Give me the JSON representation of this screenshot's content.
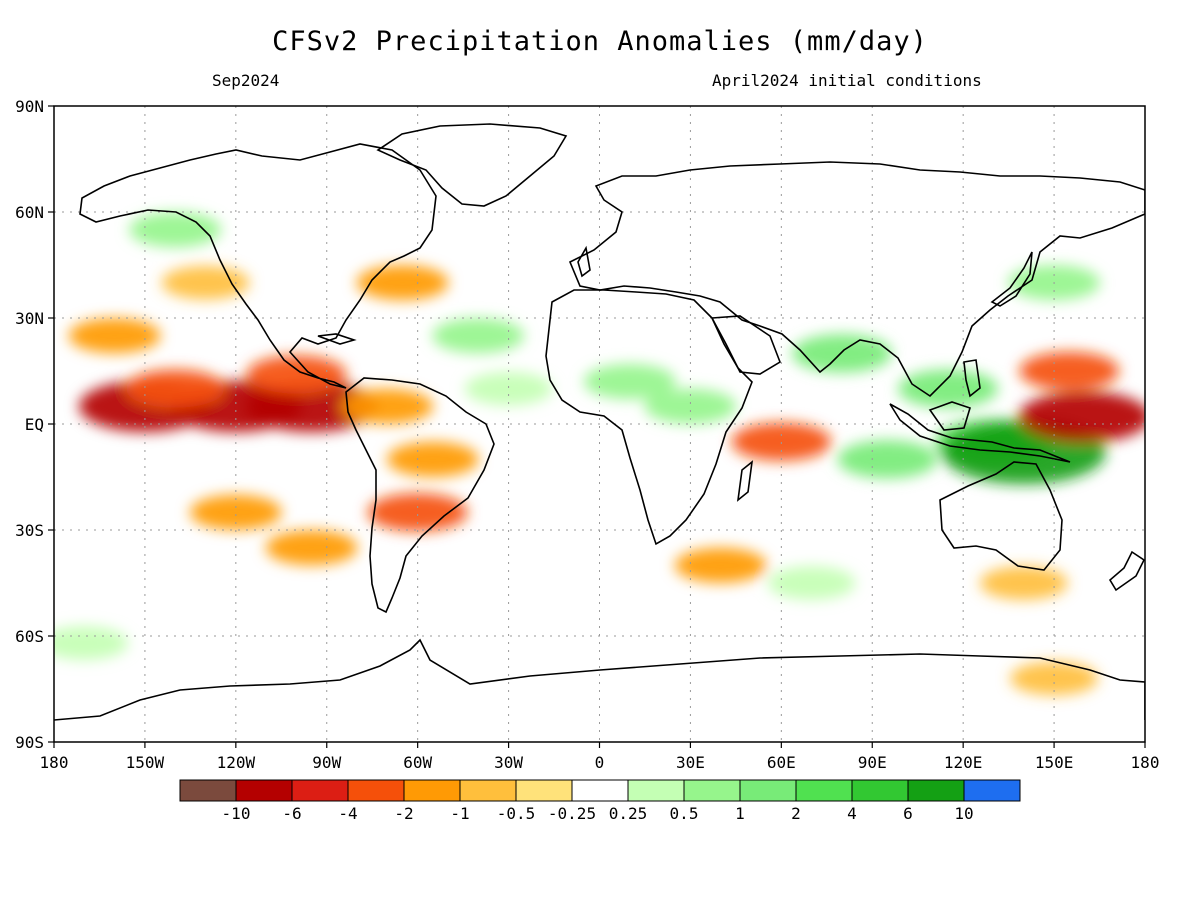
{
  "title": "CFSv2 Precipitation Anomalies (mm/day)",
  "subtitle_left": "Sep2024",
  "subtitle_right": "April2024 initial conditions",
  "lat_ticks": [
    {
      "lat": 90,
      "label": "90N"
    },
    {
      "lat": 60,
      "label": "60N"
    },
    {
      "lat": 30,
      "label": "30N"
    },
    {
      "lat": 0,
      "label": "EQ"
    },
    {
      "lat": -30,
      "label": "30S"
    },
    {
      "lat": -60,
      "label": "60S"
    },
    {
      "lat": -90,
      "label": "90S"
    }
  ],
  "lon_ticks": [
    {
      "lon": -180,
      "label": "180"
    },
    {
      "lon": -150,
      "label": "150W"
    },
    {
      "lon": -120,
      "label": "120W"
    },
    {
      "lon": -90,
      "label": "90W"
    },
    {
      "lon": -60,
      "label": "60W"
    },
    {
      "lon": -30,
      "label": "30W"
    },
    {
      "lon": 0,
      "label": "0"
    },
    {
      "lon": 30,
      "label": "30E"
    },
    {
      "lon": 60,
      "label": "60E"
    },
    {
      "lon": 90,
      "label": "90E"
    },
    {
      "lon": 120,
      "label": "120E"
    },
    {
      "lon": 150,
      "label": "150E"
    },
    {
      "lon": 180,
      "label": "180"
    }
  ],
  "colorbar": {
    "colors": [
      "#7b4a3d",
      "#b40000",
      "#dc1e14",
      "#f5500a",
      "#ff9a05",
      "#ffbf3c",
      "#ffe27a",
      "#ffffff",
      "#c4ffb4",
      "#96f58c",
      "#78eb78",
      "#50e150",
      "#32c832",
      "#14a014",
      "#1e6ef0"
    ],
    "labels": [
      "-10",
      "-6",
      "-4",
      "-2",
      "-1",
      "-0.5",
      "-0.25",
      "0.25",
      "0.5",
      "1",
      "2",
      "4",
      "6",
      "10"
    ]
  },
  "anomalies": [
    {
      "lon": -150,
      "lat": 5,
      "value": -6
    },
    {
      "lon": -120,
      "lat": 5,
      "value": -6
    },
    {
      "lon": -95,
      "lat": 5,
      "value": -6
    },
    {
      "lon": -140,
      "lat": 10,
      "value": -2
    },
    {
      "lon": -100,
      "lat": 14,
      "value": -2
    },
    {
      "lon": -160,
      "lat": 25,
      "value": -1
    },
    {
      "lon": -130,
      "lat": 40,
      "value": -0.5
    },
    {
      "lon": -120,
      "lat": -25,
      "value": -1
    },
    {
      "lon": -95,
      "lat": -35,
      "value": -1
    },
    {
      "lon": -60,
      "lat": -25,
      "value": -2
    },
    {
      "lon": -55,
      "lat": -10,
      "value": -1
    },
    {
      "lon": -70,
      "lat": 5,
      "value": -1
    },
    {
      "lon": -40,
      "lat": 25,
      "value": 1
    },
    {
      "lon": -30,
      "lat": 10,
      "value": 0.5
    },
    {
      "lon": -140,
      "lat": 55,
      "value": 1
    },
    {
      "lon": -65,
      "lat": 40,
      "value": -1
    },
    {
      "lon": 10,
      "lat": 12,
      "value": 1
    },
    {
      "lon": 30,
      "lat": 5,
      "value": 1
    },
    {
      "lon": 60,
      "lat": -5,
      "value": -2
    },
    {
      "lon": 80,
      "lat": 20,
      "value": 2
    },
    {
      "lon": 95,
      "lat": -10,
      "value": 2
    },
    {
      "lon": 115,
      "lat": 10,
      "value": 2
    },
    {
      "lon": 130,
      "lat": -5,
      "value": 4
    },
    {
      "lon": 140,
      "lat": -8,
      "value": 10
    },
    {
      "lon": 160,
      "lat": 2,
      "value": -6
    },
    {
      "lon": 155,
      "lat": 15,
      "value": -2
    },
    {
      "lon": 150,
      "lat": 40,
      "value": 1
    },
    {
      "lon": 40,
      "lat": -40,
      "value": -1
    },
    {
      "lon": 70,
      "lat": -45,
      "value": 0.5
    },
    {
      "lon": 140,
      "lat": -45,
      "value": -0.5
    },
    {
      "lon": 150,
      "lat": -72,
      "value": -0.5
    },
    {
      "lon": -170,
      "lat": -62,
      "value": 0.5
    }
  ]
}
